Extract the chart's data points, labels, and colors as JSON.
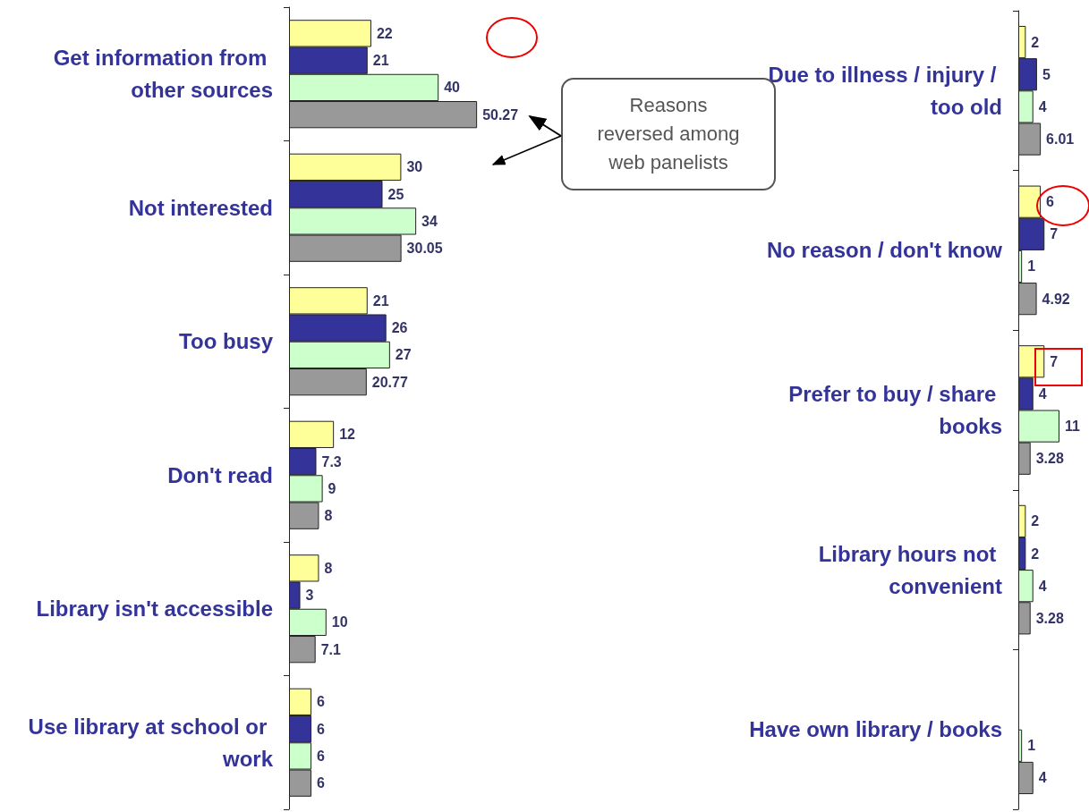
{
  "chart_data": [
    {
      "type": "bar",
      "orientation": "horizontal",
      "categories": [
        "Get information from other sources",
        "Not interested",
        "Too busy",
        "Don't read",
        "Library isn't accessible",
        "Use library at school or work"
      ],
      "series": [
        {
          "color": "#ffff99",
          "values": [
            22,
            30,
            21,
            12,
            8,
            6
          ]
        },
        {
          "color": "#333399",
          "values": [
            21,
            25,
            26,
            7.3,
            3,
            6
          ]
        },
        {
          "color": "#ccffcc",
          "values": [
            40,
            34,
            27,
            9,
            10,
            6
          ]
        },
        {
          "color": "#999999",
          "values": [
            50.27,
            30.05,
            20.77,
            8,
            7.1,
            6
          ]
        }
      ],
      "data_labels": true,
      "annotations": [
        "Reasons\nreversed among\nweb panelists"
      ]
    },
    {
      "type": "bar",
      "orientation": "horizontal",
      "categories": [
        "Due to illness / injury / too old",
        "No reason / don't know",
        "Prefer to buy / share books",
        "Library hours not convenient",
        "Have own library / books"
      ],
      "series": [
        {
          "color": "#ffff99",
          "values": [
            2,
            6,
            7,
            2,
            null
          ]
        },
        {
          "color": "#333399",
          "values": [
            5,
            7,
            4,
            2,
            null
          ]
        },
        {
          "color": "#ccffcc",
          "values": [
            4,
            1,
            11,
            4,
            1
          ]
        },
        {
          "color": "#999999",
          "values": [
            6.01,
            4.92,
            3.28,
            3.28,
            4
          ]
        }
      ],
      "data_labels": true
    }
  ]
}
